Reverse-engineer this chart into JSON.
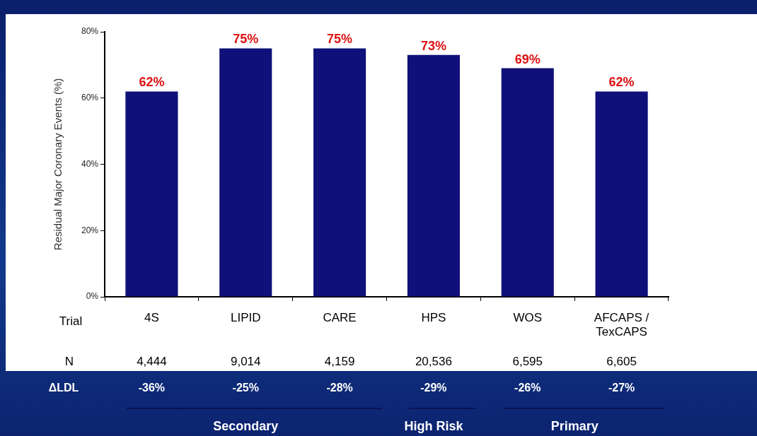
{
  "chart_data": {
    "type": "bar",
    "ylabel": "Residual Major Coronary Events (%)",
    "categories": [
      "4S",
      "LIPID",
      "CARE",
      "HPS",
      "WOS",
      "AFCAPS / TexCAPS"
    ],
    "values": [
      62,
      75,
      75,
      73,
      69,
      62
    ],
    "value_labels": [
      "62%",
      "75%",
      "75%",
      "73%",
      "69%",
      "62%"
    ],
    "color": "#10107a",
    "ylim": [
      0,
      80
    ],
    "yticks": [
      {
        "value": 0,
        "label": "0%"
      },
      {
        "value": 20,
        "label": "20%"
      },
      {
        "value": 40,
        "label": "40%"
      },
      {
        "value": 60,
        "label": "60%"
      },
      {
        "value": 80,
        "label": "80%"
      }
    ],
    "grid": false,
    "legend": false,
    "annotations": [
      "Trial",
      "N",
      "4,444",
      "9,014",
      "4,159",
      "20,536",
      "6,595",
      "6,605",
      "ΔLDL",
      "-36%",
      "-25%",
      "-28%",
      "-29%",
      "-26%",
      "-27%",
      "Secondary",
      "High Risk",
      "Primary"
    ]
  }
}
